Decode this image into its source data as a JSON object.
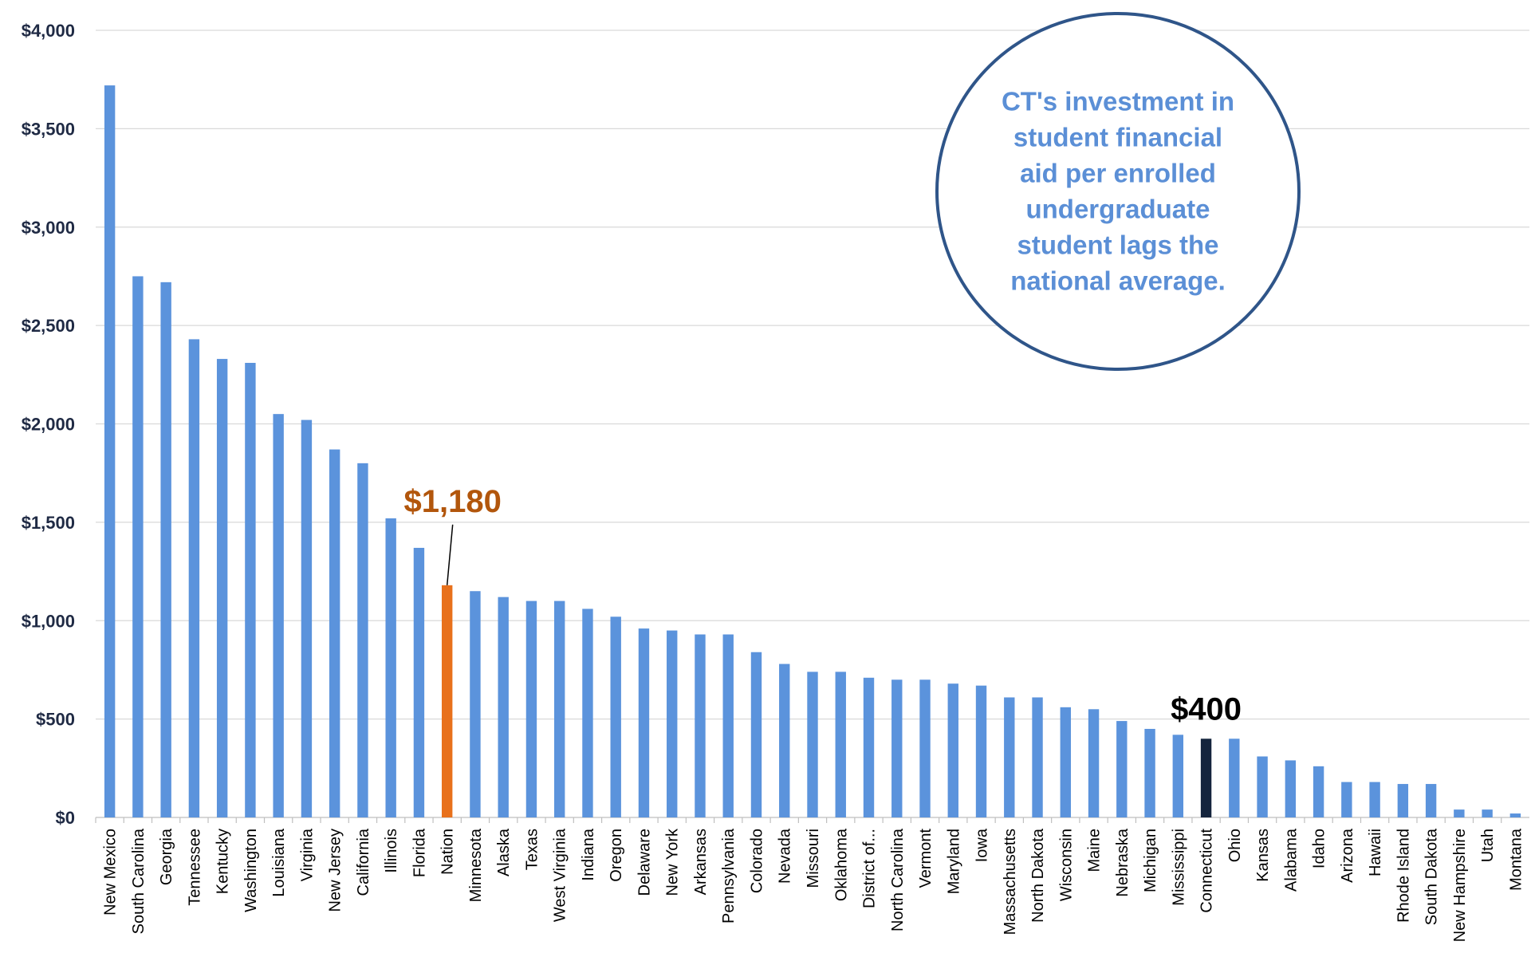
{
  "chart_data": {
    "type": "bar",
    "categories": [
      "New Mexico",
      "South Carolina",
      "Georgia",
      "Tennessee",
      "Kentucky",
      "Washington",
      "Louisiana",
      "Virginia",
      "New Jersey",
      "California",
      "Illinois",
      "Florida",
      "Nation",
      "Minnesota",
      "Alaska",
      "Texas",
      "West Virginia",
      "Indiana",
      "Oregon",
      "Delaware",
      "New York",
      "Arkansas",
      "Pennsylvania",
      "Colorado",
      "Nevada",
      "Missouri",
      "Oklahoma",
      "District of...",
      "North Carolina",
      "Vermont",
      "Maryland",
      "Iowa",
      "Massachusetts",
      "North Dakota",
      "Wisconsin",
      "Maine",
      "Nebraska",
      "Michigan",
      "Mississippi",
      "Connecticut",
      "Ohio",
      "Kansas",
      "Alabama",
      "Idaho",
      "Arizona",
      "Hawaii",
      "Rhode Island",
      "South Dakota",
      "New Hampshire",
      "Utah",
      "Montana"
    ],
    "values": [
      3720,
      2750,
      2720,
      2430,
      2330,
      2310,
      2050,
      2020,
      1870,
      1800,
      1520,
      1370,
      1180,
      1150,
      1120,
      1100,
      1100,
      1060,
      1020,
      960,
      950,
      930,
      930,
      840,
      780,
      740,
      740,
      710,
      700,
      700,
      680,
      670,
      610,
      610,
      560,
      550,
      490,
      450,
      420,
      400,
      400,
      310,
      290,
      260,
      180,
      180,
      170,
      170,
      40,
      40,
      20
    ],
    "ylim": [
      0,
      4000
    ],
    "yticks": [
      "$0",
      "$500",
      "$1,000",
      "$1,500",
      "$2,000",
      "$2,500",
      "$3,000",
      "$3,500",
      "$4,000"
    ],
    "ytick_values": [
      0,
      500,
      1000,
      1500,
      2000,
      2500,
      3000,
      3500,
      4000
    ],
    "grid": true,
    "colors": {
      "default": "#5b93dc",
      "Nation": "#e8711c",
      "Connecticut": "#14243d"
    },
    "highlights": [
      {
        "category": "Nation",
        "label": "$1,180",
        "color": "#b2560c"
      },
      {
        "category": "Connecticut",
        "label": "$400",
        "color": "#000000"
      }
    ],
    "annotation_lines": [
      "CT's investment in",
      "student financial",
      "aid per enrolled",
      "undergraduate",
      "student lags the",
      "national average."
    ]
  }
}
